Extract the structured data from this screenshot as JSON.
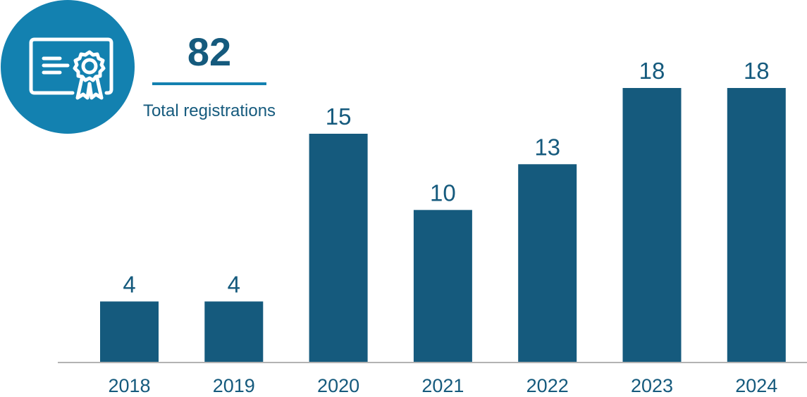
{
  "kpi": {
    "total": "82",
    "caption": "Total registrations",
    "icon": "certificate-icon"
  },
  "colors": {
    "bar": "#155a7d",
    "accent": "#1381b0",
    "axis": "#b3b3b3",
    "text": "#155a7d"
  },
  "chart_data": {
    "type": "bar",
    "categories": [
      "2018",
      "2019",
      "2020",
      "2021",
      "2022",
      "2023",
      "2024"
    ],
    "values": [
      4,
      4,
      15,
      10,
      13,
      18,
      18
    ],
    "title": "",
    "xlabel": "",
    "ylabel": "",
    "ylim": [
      0,
      18
    ],
    "grid": false,
    "data_labels": true
  }
}
